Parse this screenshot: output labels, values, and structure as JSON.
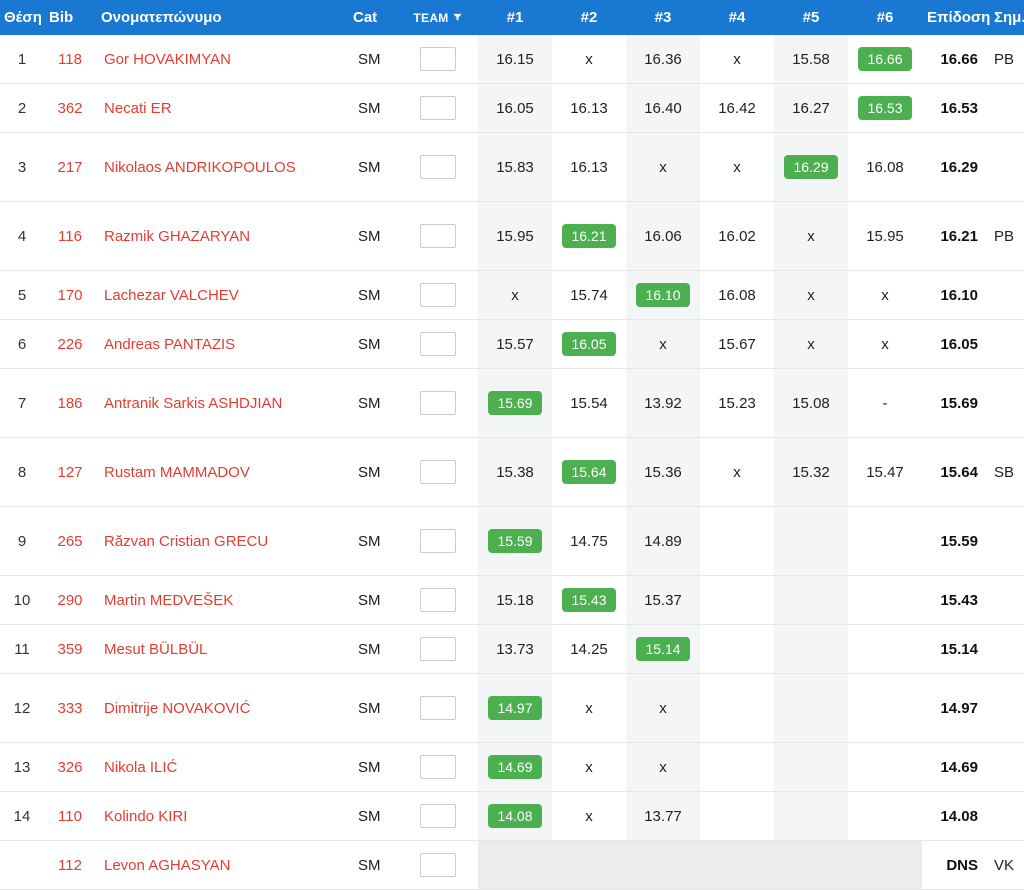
{
  "colors": {
    "header_bg": "#1878d2",
    "header_text": "#ffffff",
    "best_mark_bg": "#4caf50",
    "best_mark_text": "#ffffff",
    "athlete_link": "#e53c32",
    "shaded_column": "#f4f5f6",
    "dns_band": "#ececec"
  },
  "table": {
    "headers": {
      "place": "Θέση",
      "bib": "Bib",
      "name": "Ονοματεπώνυμο",
      "cat": "Cat",
      "team": "TEAM",
      "attempts": [
        "#1",
        "#2",
        "#3",
        "#4",
        "#5",
        "#6"
      ],
      "result": "Επίδοση",
      "remark": "Σημ."
    },
    "rows": [
      {
        "place": "1",
        "bib": "118",
        "name": "Gor HOVAKIMYAN",
        "cat": "SM",
        "attempts": [
          "16.15",
          "x",
          "16.36",
          "x",
          "15.58",
          "16.66"
        ],
        "best": 5,
        "result": "16.66",
        "remark": "PB",
        "tall": false,
        "dns": false
      },
      {
        "place": "2",
        "bib": "362",
        "name": "Necati ER",
        "cat": "SM",
        "attempts": [
          "16.05",
          "16.13",
          "16.40",
          "16.42",
          "16.27",
          "16.53"
        ],
        "best": 5,
        "result": "16.53",
        "remark": "",
        "tall": false,
        "dns": false
      },
      {
        "place": "3",
        "bib": "217",
        "name": "Nikolaos ANDRIKOPOULOS",
        "cat": "SM",
        "attempts": [
          "15.83",
          "16.13",
          "x",
          "x",
          "16.29",
          "16.08"
        ],
        "best": 4,
        "result": "16.29",
        "remark": "",
        "tall": true,
        "dns": false
      },
      {
        "place": "4",
        "bib": "116",
        "name": "Razmik GHAZARYAN",
        "cat": "SM",
        "attempts": [
          "15.95",
          "16.21",
          "16.06",
          "16.02",
          "x",
          "15.95"
        ],
        "best": 1,
        "result": "16.21",
        "remark": "PB",
        "tall": true,
        "dns": false
      },
      {
        "place": "5",
        "bib": "170",
        "name": "Lachezar VALCHEV",
        "cat": "SM",
        "attempts": [
          "x",
          "15.74",
          "16.10",
          "16.08",
          "x",
          "x"
        ],
        "best": 2,
        "result": "16.10",
        "remark": "",
        "tall": false,
        "dns": false
      },
      {
        "place": "6",
        "bib": "226",
        "name": "Andreas PANTAZIS",
        "cat": "SM",
        "attempts": [
          "15.57",
          "16.05",
          "x",
          "15.67",
          "x",
          "x"
        ],
        "best": 1,
        "result": "16.05",
        "remark": "",
        "tall": false,
        "dns": false
      },
      {
        "place": "7",
        "bib": "186",
        "name": "Antranik Sarkis ASHDJIAN",
        "cat": "SM",
        "attempts": [
          "15.69",
          "15.54",
          "13.92",
          "15.23",
          "15.08",
          "-"
        ],
        "best": 0,
        "result": "15.69",
        "remark": "",
        "tall": true,
        "dns": false
      },
      {
        "place": "8",
        "bib": "127",
        "name": "Rustam MAMMADOV",
        "cat": "SM",
        "attempts": [
          "15.38",
          "15.64",
          "15.36",
          "x",
          "15.32",
          "15.47"
        ],
        "best": 1,
        "result": "15.64",
        "remark": "SB",
        "tall": true,
        "dns": false
      },
      {
        "place": "9",
        "bib": "265",
        "name": "Răzvan Cristian GRECU",
        "cat": "SM",
        "attempts": [
          "15.59",
          "14.75",
          "14.89",
          "",
          "",
          ""
        ],
        "best": 0,
        "result": "15.59",
        "remark": "",
        "tall": true,
        "dns": false
      },
      {
        "place": "10",
        "bib": "290",
        "name": "Martin MEDVEŠEK",
        "cat": "SM",
        "attempts": [
          "15.18",
          "15.43",
          "15.37",
          "",
          "",
          ""
        ],
        "best": 1,
        "result": "15.43",
        "remark": "",
        "tall": false,
        "dns": false
      },
      {
        "place": "11",
        "bib": "359",
        "name": "Mesut BÜLBÜL",
        "cat": "SM",
        "attempts": [
          "13.73",
          "14.25",
          "15.14",
          "",
          "",
          ""
        ],
        "best": 2,
        "result": "15.14",
        "remark": "",
        "tall": false,
        "dns": false
      },
      {
        "place": "12",
        "bib": "333",
        "name": "Dimitrije NOVAKOVIĆ",
        "cat": "SM",
        "attempts": [
          "14.97",
          "x",
          "x",
          "",
          "",
          ""
        ],
        "best": 0,
        "result": "14.97",
        "remark": "",
        "tall": true,
        "dns": false
      },
      {
        "place": "13",
        "bib": "326",
        "name": "Nikola ILIĆ",
        "cat": "SM",
        "attempts": [
          "14.69",
          "x",
          "x",
          "",
          "",
          ""
        ],
        "best": 0,
        "result": "14.69",
        "remark": "",
        "tall": false,
        "dns": false
      },
      {
        "place": "14",
        "bib": "110",
        "name": "Kolindo KIRI",
        "cat": "SM",
        "attempts": [
          "14.08",
          "x",
          "13.77",
          "",
          "",
          ""
        ],
        "best": 0,
        "result": "14.08",
        "remark": "",
        "tall": false,
        "dns": false
      },
      {
        "place": "",
        "bib": "112",
        "name": "Levon AGHASYAN",
        "cat": "SM",
        "attempts": [
          "",
          "",
          "",
          "",
          "",
          ""
        ],
        "best": -1,
        "result": "DNS",
        "remark": "VK",
        "tall": false,
        "dns": true
      }
    ]
  }
}
